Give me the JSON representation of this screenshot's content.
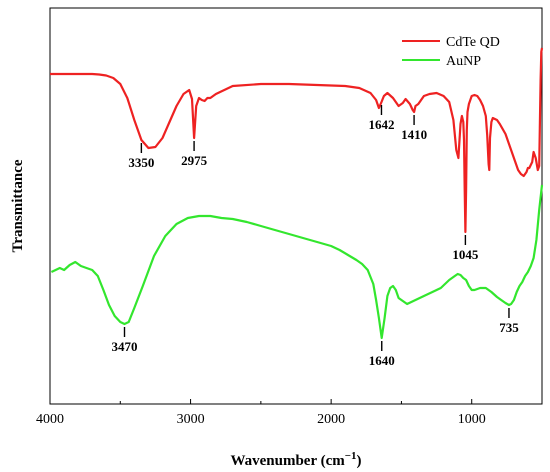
{
  "chart_data": {
    "type": "line",
    "title": "",
    "xlabel": "Wavenumber (cm",
    "xlabel_sup": "−1",
    "xlabel_close": ")",
    "ylabel": "Transmittance",
    "xlim": [
      4000,
      500
    ],
    "x_reversed": true,
    "y_ticks_shown": false,
    "grid": false,
    "legend_position": "top-right",
    "x_ticks": [
      {
        "value": 4000,
        "label": "4000"
      },
      {
        "value": 3000,
        "label": "3000"
      },
      {
        "value": 2000,
        "label": "2000"
      },
      {
        "value": 1000,
        "label": "1000"
      }
    ],
    "series": [
      {
        "name": "CdTe QD",
        "color": "#ee2222",
        "x": [
          4000,
          3900,
          3800,
          3700,
          3650,
          3600,
          3550,
          3500,
          3450,
          3400,
          3350,
          3300,
          3250,
          3200,
          3150,
          3100,
          3050,
          3010,
          2990,
          2975,
          2960,
          2940,
          2920,
          2900,
          2880,
          2860,
          2820,
          2700,
          2500,
          2300,
          2100,
          1900,
          1800,
          1720,
          1680,
          1660,
          1642,
          1625,
          1600,
          1560,
          1520,
          1490,
          1470,
          1440,
          1420,
          1410,
          1400,
          1380,
          1360,
          1340,
          1300,
          1250,
          1200,
          1160,
          1130,
          1110,
          1095,
          1080,
          1070,
          1060,
          1055,
          1050,
          1045,
          1040,
          1035,
          1030,
          1020,
          1000,
          980,
          960,
          940,
          920,
          900,
          890,
          880,
          875,
          870,
          860,
          850,
          820,
          800,
          760,
          720,
          690,
          670,
          650,
          630,
          610,
          600,
          590,
          570,
          560,
          545,
          530,
          520,
          510,
          505,
          500
        ],
        "y": [
          74,
          74,
          74,
          74,
          74.5,
          75.5,
          78,
          84,
          98,
          120,
          140,
          148,
          147,
          138,
          122,
          106,
          94,
          90,
          99,
          138,
          106,
          98,
          100,
          101,
          98,
          98,
          94,
          86,
          84,
          84,
          85,
          86,
          88,
          93,
          100,
          108,
          102,
          96,
          93,
          98,
          106,
          103,
          99,
          104,
          110,
          112,
          106,
          104,
          100,
          96,
          94,
          93,
          96,
          102,
          120,
          150,
          158,
          124,
          116,
          122,
          140,
          190,
          232,
          190,
          130,
          112,
          104,
          96,
          95,
          96,
          100,
          106,
          116,
          135,
          164,
          170,
          138,
          122,
          118,
          120,
          124,
          134,
          150,
          162,
          170,
          174,
          176,
          172,
          168,
          168,
          162,
          152,
          158,
          170,
          166,
          80,
          52,
          48
        ]
      },
      {
        "name": "AuNP",
        "color": "#33e62e",
        "x": [
          3990,
          3960,
          3930,
          3900,
          3860,
          3820,
          3780,
          3740,
          3700,
          3660,
          3620,
          3580,
          3540,
          3500,
          3470,
          3440,
          3400,
          3340,
          3260,
          3180,
          3100,
          3020,
          2940,
          2860,
          2780,
          2700,
          2600,
          2500,
          2400,
          2300,
          2200,
          2100,
          2000,
          1940,
          1880,
          1820,
          1780,
          1740,
          1700,
          1680,
          1660,
          1640,
          1620,
          1600,
          1580,
          1560,
          1540,
          1520,
          1500,
          1460,
          1400,
          1340,
          1280,
          1220,
          1160,
          1120,
          1100,
          1080,
          1060,
          1040,
          1020,
          1000,
          980,
          940,
          900,
          860,
          820,
          790,
          760,
          735,
          720,
          700,
          680,
          660,
          640,
          620,
          600,
          580,
          560,
          540,
          520,
          500
        ],
        "y": [
          272,
          270,
          268,
          270,
          265,
          262,
          266,
          268,
          270,
          276,
          290,
          305,
          316,
          322,
          324,
          322,
          308,
          286,
          256,
          236,
          224,
          218,
          216,
          216,
          218,
          219,
          222,
          226,
          230,
          234,
          238,
          242,
          246,
          250,
          255,
          260,
          264,
          270,
          284,
          300,
          318,
          338,
          318,
          296,
          288,
          286,
          290,
          298,
          300,
          304,
          300,
          296,
          292,
          288,
          280,
          276,
          274,
          275,
          278,
          280,
          286,
          290,
          290,
          288,
          288,
          292,
          297,
          300,
          303,
          305,
          304,
          300,
          292,
          286,
          282,
          276,
          272,
          266,
          258,
          240,
          210,
          185
        ]
      }
    ],
    "annotations": [
      {
        "label": "3350",
        "x": 3350,
        "series": 0
      },
      {
        "label": "2975",
        "x": 2975,
        "series": 0
      },
      {
        "label": "1642",
        "x": 1642,
        "series": 0
      },
      {
        "label": "1410",
        "x": 1410,
        "series": 0
      },
      {
        "label": "1045",
        "x": 1045,
        "series": 0
      },
      {
        "label": "3470",
        "x": 3470,
        "series": 1
      },
      {
        "label": "1640",
        "x": 1640,
        "series": 1
      },
      {
        "label": "735",
        "x": 735,
        "series": 1
      }
    ]
  }
}
